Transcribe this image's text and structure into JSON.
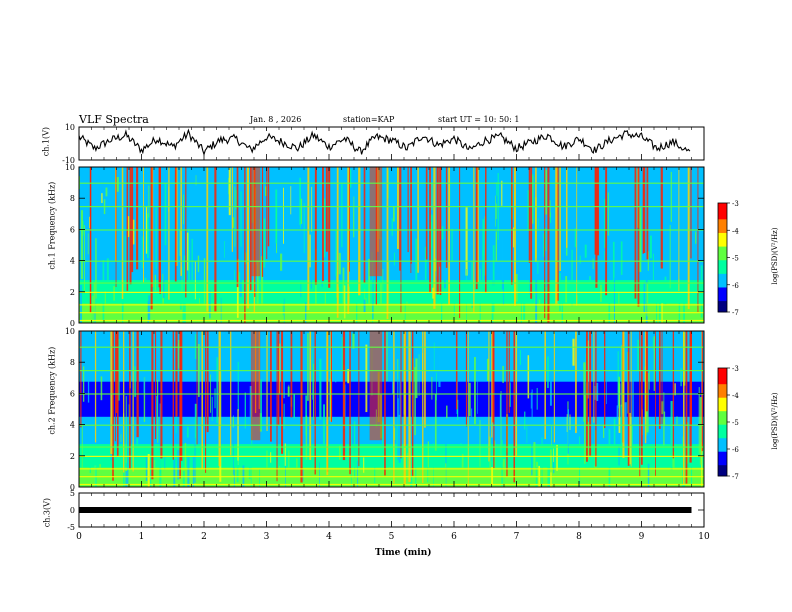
{
  "header": {
    "title": "VLF Spectra",
    "date": "Jan. 8 , 2026",
    "station": "station=KAP",
    "start_ut": "start UT = 10: 50: 1"
  },
  "colors": {
    "trace": "#000000",
    "colormap": [
      "#000080",
      "#0000ff",
      "#00c0ff",
      "#00ffa0",
      "#60ff40",
      "#ffff00",
      "#ff8000",
      "#ff0000",
      "#ffffff"
    ]
  },
  "chart_data": [
    {
      "type": "line",
      "name": "ch1-waveform",
      "ylabel": "ch.1(V)",
      "ylim": [
        -10,
        10
      ],
      "yticks": [
        "10",
        "-10"
      ],
      "xlim": [
        0,
        10
      ],
      "x": [
        0.0,
        0.25,
        0.5,
        0.75,
        1.0,
        1.25,
        1.5,
        1.75,
        2.0,
        2.25,
        2.5,
        2.75,
        3.0,
        3.25,
        3.5,
        3.75,
        4.0,
        4.25,
        4.5,
        4.75,
        5.0,
        5.25,
        5.5,
        5.75,
        6.0,
        6.25,
        6.5,
        6.75,
        7.0,
        7.25,
        7.5,
        7.75,
        8.0,
        8.25,
        8.5,
        8.75,
        9.0,
        9.25,
        9.5,
        9.8
      ],
      "values": [
        4,
        -3,
        2,
        5,
        -4,
        3,
        -2,
        6,
        -5,
        2,
        3,
        -4,
        4,
        1,
        -3,
        5,
        -2,
        3,
        -5,
        4,
        2,
        -3,
        5,
        -1,
        3,
        -4,
        2,
        4,
        -3,
        1,
        5,
        -2,
        3,
        -4,
        2,
        6,
        4,
        -3,
        1,
        -6
      ]
    },
    {
      "type": "heatmap",
      "name": "ch1-spectrogram",
      "ylabel": "ch.1 Frequency (kHz)",
      "yticks": [
        "0",
        "2",
        "4",
        "6",
        "8",
        "10"
      ],
      "ylim": [
        0,
        10
      ],
      "xlim": [
        0,
        10
      ],
      "colorbar_label": "log(PSD)(V²/Hz)",
      "colorbar_ticks": [
        "-3",
        "-4",
        "-5",
        "-6",
        "-7"
      ],
      "crange": [
        -7,
        -3
      ]
    },
    {
      "type": "heatmap",
      "name": "ch2-spectrogram",
      "ylabel": "ch.2 Frequency (kHz)",
      "yticks": [
        "0",
        "2",
        "4",
        "6",
        "8",
        "10"
      ],
      "ylim": [
        0,
        10
      ],
      "xlim": [
        0,
        10
      ],
      "colorbar_label": "log(PSD)(V²/Hz)",
      "colorbar_ticks": [
        "-3",
        "-4",
        "-5",
        "-6",
        "-7"
      ],
      "crange": [
        -7,
        -3
      ]
    },
    {
      "type": "line",
      "name": "ch3-signal",
      "ylabel": "ch.3(V)",
      "ylim": [
        -5,
        5
      ],
      "yticks": [
        "5",
        "0",
        "-5"
      ],
      "xlim": [
        0,
        10
      ],
      "x": [
        0,
        9.8
      ],
      "values": [
        0,
        0
      ],
      "xlabel": "Time (min)",
      "xticks": [
        "0",
        "1",
        "2",
        "3",
        "4",
        "5",
        "6",
        "7",
        "8",
        "9",
        "10"
      ]
    }
  ]
}
